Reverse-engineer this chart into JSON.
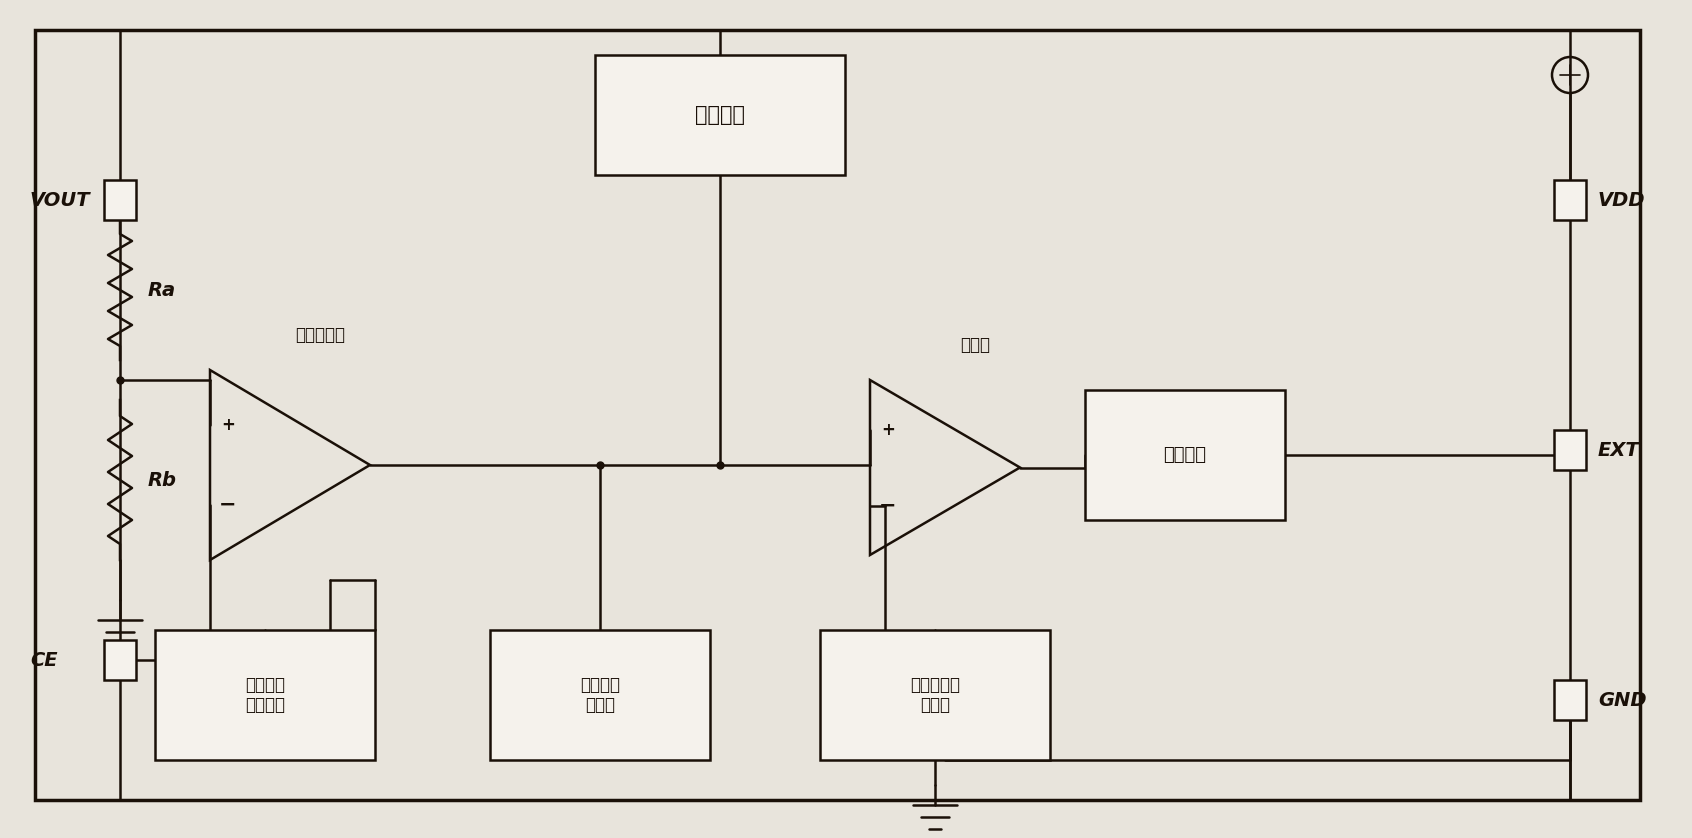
{
  "bg": "#e8e4dc",
  "lc": "#1a1008",
  "box_fill": "#f5f2ec",
  "fw": 16.92,
  "fh": 8.38,
  "dpi": 100,
  "phase_label": "相位补偿",
  "error_amp_label": "误差放大器",
  "comparator_label": "比较器",
  "buffer_label": "缓冲驱动",
  "startup_label": "启动电路\n基准电路",
  "pwm_label": "脉宽调制\n控制器",
  "ramp_label": "斜坡产生器\n振荡器",
  "Ra": "Ra",
  "Rb": "Rb",
  "VOUT": "VOUT",
  "CE": "CE",
  "VDD": "VDD",
  "EXT": "EXT",
  "GND": "GND"
}
